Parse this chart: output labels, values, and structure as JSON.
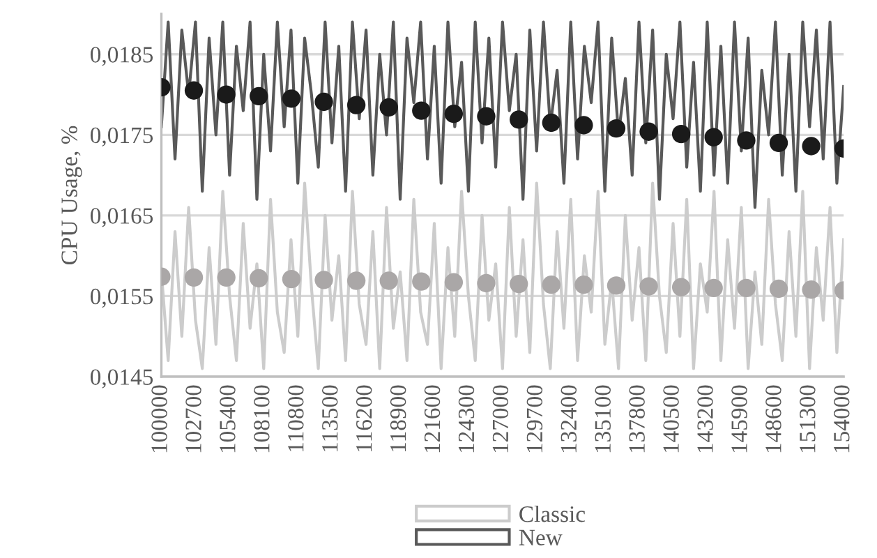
{
  "chart_data": {
    "type": "line",
    "ylabel": "CPU Usage, %",
    "x": [
      100000,
      100540,
      101080,
      101620,
      102160,
      102700,
      103240,
      103780,
      104320,
      104860,
      105400,
      105940,
      106480,
      107020,
      107560,
      108100,
      108640,
      109180,
      109720,
      110260,
      110800,
      111340,
      111880,
      112420,
      112960,
      113500,
      114040,
      114580,
      115120,
      115660,
      116200,
      116740,
      117280,
      117820,
      118360,
      118900,
      119440,
      119980,
      120520,
      121060,
      121600,
      122140,
      122680,
      123220,
      123760,
      124300,
      124840,
      125380,
      125920,
      126460,
      127000,
      127540,
      128080,
      128620,
      129160,
      129700,
      130240,
      130780,
      131320,
      131860,
      132400,
      132940,
      133480,
      134020,
      134560,
      135100,
      135640,
      136180,
      136720,
      137260,
      137800,
      138340,
      138880,
      139420,
      139960,
      140500,
      141040,
      141580,
      142120,
      142660,
      143200,
      143740,
      144280,
      144820,
      145360,
      145900,
      146440,
      146980,
      147520,
      148060,
      148600,
      149140,
      149680,
      150220,
      150760,
      151300,
      151840,
      152380,
      152920,
      153460,
      154000
    ],
    "series": [
      {
        "name": "Classic",
        "marker": "none",
        "color": "#cccccc",
        "values": [
          0.0158,
          0.0147,
          0.0163,
          0.015,
          0.0166,
          0.0152,
          0.0146,
          0.0161,
          0.0149,
          0.0168,
          0.0155,
          0.0147,
          0.0164,
          0.0151,
          0.0159,
          0.0146,
          0.0167,
          0.0153,
          0.0148,
          0.0162,
          0.015,
          0.0169,
          0.0156,
          0.0146,
          0.0165,
          0.0152,
          0.016,
          0.0147,
          0.0168,
          0.0154,
          0.0149,
          0.0163,
          0.0146,
          0.0166,
          0.0151,
          0.0158,
          0.0147,
          0.0167,
          0.0153,
          0.0149,
          0.0164,
          0.0146,
          0.0161,
          0.015,
          0.0168,
          0.0155,
          0.0147,
          0.0165,
          0.0152,
          0.0159,
          0.0146,
          0.0166,
          0.015,
          0.0162,
          0.0148,
          0.0169,
          0.0154,
          0.0146,
          0.0163,
          0.0151,
          0.0167,
          0.0147,
          0.016,
          0.0153,
          0.0168,
          0.0149,
          0.0157,
          0.0146,
          0.0165,
          0.0152,
          0.0161,
          0.0147,
          0.0169,
          0.0155,
          0.0148,
          0.0164,
          0.015,
          0.0167,
          0.0146,
          0.0159,
          0.0153,
          0.0168,
          0.0147,
          0.0162,
          0.0151,
          0.0166,
          0.0146,
          0.0158,
          0.0149,
          0.0167,
          0.0154,
          0.0147,
          0.0163,
          0.015,
          0.0168,
          0.0146,
          0.0161,
          0.0152,
          0.0166,
          0.0148,
          0.0162
        ]
      },
      {
        "name": "New",
        "marker": "none",
        "color": "#595959",
        "values": [
          0.0176,
          0.0189,
          0.0172,
          0.0188,
          0.018,
          0.0189,
          0.0168,
          0.0187,
          0.0175,
          0.0189,
          0.017,
          0.0186,
          0.0178,
          0.0189,
          0.0167,
          0.0185,
          0.0173,
          0.0189,
          0.0176,
          0.0188,
          0.0169,
          0.0187,
          0.018,
          0.0171,
          0.0189,
          0.0174,
          0.0186,
          0.0168,
          0.0189,
          0.0177,
          0.0188,
          0.017,
          0.0185,
          0.0175,
          0.0189,
          0.0167,
          0.0187,
          0.0179,
          0.0189,
          0.0172,
          0.0186,
          0.0169,
          0.0189,
          0.0176,
          0.0184,
          0.0168,
          0.0189,
          0.0174,
          0.0187,
          0.0171,
          0.0189,
          0.0178,
          0.0185,
          0.0167,
          0.0188,
          0.0173,
          0.0189,
          0.0176,
          0.0183,
          0.0169,
          0.0189,
          0.0172,
          0.0186,
          0.0179,
          0.0189,
          0.0168,
          0.0187,
          0.0175,
          0.0182,
          0.017,
          0.0189,
          0.0174,
          0.0188,
          0.0167,
          0.0185,
          0.0177,
          0.0189,
          0.0171,
          0.0184,
          0.0168,
          0.0189,
          0.017,
          0.0186,
          0.0169,
          0.0189,
          0.0173,
          0.0187,
          0.0166,
          0.0183,
          0.0175,
          0.0189,
          0.017,
          0.0185,
          0.0168,
          0.0189,
          0.0176,
          0.0188,
          0.0172,
          0.0189,
          0.0169,
          0.0181
        ]
      },
      {
        "type": "scatter",
        "marker": "circle",
        "color": "#aaa7a7",
        "x": [
          100000,
          102570,
          105140,
          107710,
          110290,
          112860,
          115430,
          118000,
          120570,
          123140,
          125710,
          128290,
          130860,
          133430,
          136000,
          138570,
          141140,
          143710,
          146290,
          148860,
          151430,
          154000
        ],
        "values": [
          0.01574,
          0.01573,
          0.01573,
          0.01572,
          0.01571,
          0.0157,
          0.01569,
          0.01569,
          0.01568,
          0.01567,
          0.01566,
          0.01565,
          0.01564,
          0.01564,
          0.01563,
          0.01562,
          0.01561,
          0.0156,
          0.0156,
          0.01559,
          0.01558,
          0.01557
        ]
      },
      {
        "type": "scatter",
        "marker": "circle",
        "color": "#1a1a1a",
        "x": [
          100000,
          102570,
          105140,
          107710,
          110290,
          112860,
          115430,
          118000,
          120570,
          123140,
          125710,
          128290,
          130860,
          133430,
          136000,
          138570,
          141140,
          143710,
          146290,
          148860,
          151430,
          154000
        ],
        "values": [
          0.01809,
          0.01805,
          0.018,
          0.01798,
          0.01795,
          0.01791,
          0.01787,
          0.01784,
          0.0178,
          0.01776,
          0.01773,
          0.01769,
          0.01765,
          0.01762,
          0.01758,
          0.01754,
          0.01751,
          0.01747,
          0.01743,
          0.0174,
          0.01736,
          0.01733
        ]
      }
    ],
    "xlim": [
      100000,
      154000
    ],
    "xticks": [
      100000,
      102700,
      105400,
      108100,
      110800,
      113500,
      116200,
      118900,
      121600,
      124300,
      127000,
      129700,
      132400,
      135100,
      137800,
      140500,
      143200,
      145900,
      148600,
      151300,
      154000
    ],
    "ylim": [
      0.0145,
      0.019
    ],
    "yticks": [
      {
        "value": 0.0145,
        "label": "0,0145"
      },
      {
        "value": 0.0155,
        "label": "0,0155"
      },
      {
        "value": 0.0165,
        "label": "0,0165"
      },
      {
        "value": 0.0175,
        "label": "0,0175"
      },
      {
        "value": 0.0185,
        "label": "0,0185"
      }
    ],
    "grid": "y",
    "legend": "bottom"
  }
}
